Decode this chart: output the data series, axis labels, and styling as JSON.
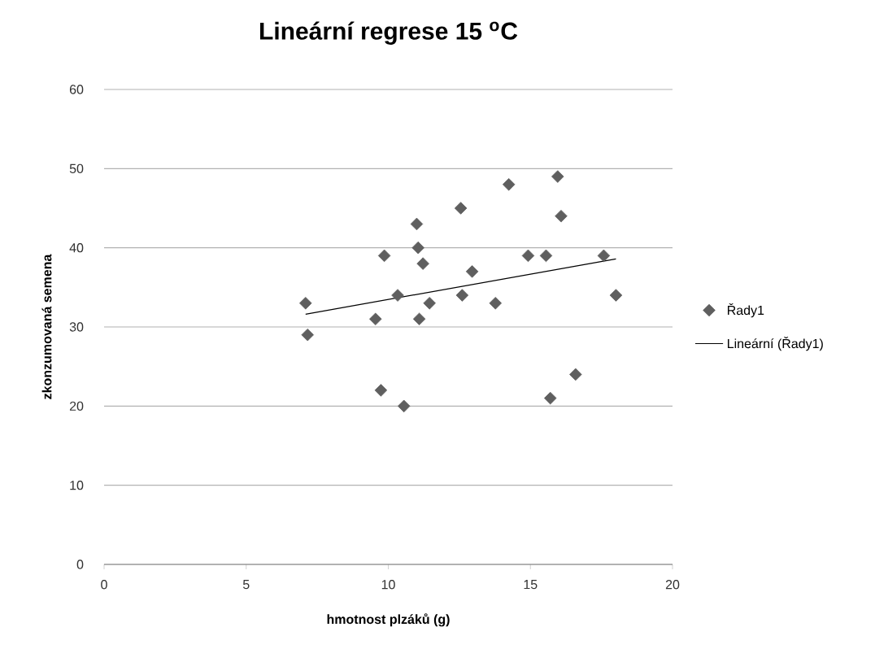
{
  "chart_data": {
    "type": "scatter",
    "title": "Lineární regrese 15 $^{o}$C",
    "xlabel": "hmotnost plzáků (g)",
    "ylabel": "zkonzumovaná semena",
    "xlim": [
      0,
      20
    ],
    "xticks": [
      0,
      5,
      10,
      15,
      20
    ],
    "ylim": [
      0,
      60
    ],
    "yticks": [
      0,
      10,
      20,
      30,
      40,
      50,
      60
    ],
    "grid": "y",
    "legend": "right",
    "series": [
      {
        "name": "Řady1",
        "color": "#5f5f5f",
        "marker": "diamond",
        "x": [
          7.09,
          7.16,
          9.55,
          9.86,
          9.74,
          10.33,
          10.55,
          11.0,
          11.05,
          11.22,
          11.09,
          11.45,
          12.55,
          12.6,
          12.95,
          14.24,
          15.96,
          16.08,
          14.92,
          15.55,
          17.58,
          13.77,
          18.01,
          16.59,
          15.7
        ],
        "values": [
          33,
          29,
          31,
          39,
          22,
          34,
          20,
          43,
          40,
          38,
          31,
          33,
          45,
          34,
          37,
          48,
          49,
          44,
          39,
          39,
          39,
          33,
          34,
          24,
          21
        ]
      },
      {
        "name": "Lineární (Řady1)",
        "type": "line",
        "marker": "none",
        "color": "#000000",
        "x": [
          7.09,
          18.01
        ],
        "values": [
          31.6,
          38.6
        ]
      }
    ]
  }
}
